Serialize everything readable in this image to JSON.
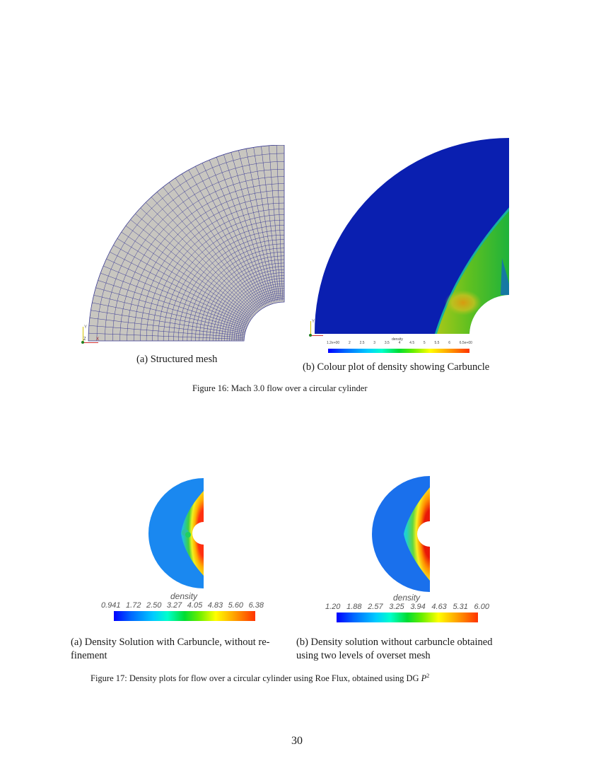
{
  "page": {
    "number": "30"
  },
  "figure16": {
    "caption": "Figure 16: Mach 3.0 flow over a circular cylinder",
    "subfig_a": {
      "caption": "(a) Structured mesh",
      "mesh_color": "#c8c6c0",
      "grid_color": "#2a2a8a"
    },
    "subfig_b": {
      "caption": "(b) Colour plot of density showing Carbuncle",
      "colorbar": {
        "title": "density",
        "ticks": [
          "1.2e+00",
          "2",
          "2.5",
          "3",
          "3.5",
          "4",
          "4.5",
          "5",
          "5.5",
          "6",
          "6.5e+00"
        ]
      }
    },
    "axis_indicator": {
      "y": "Y",
      "z": "Z",
      "x": "X"
    }
  },
  "figure17": {
    "caption_prefix": "Figure 17: Density plots for flow over a circular cylinder using Roe Flux, obtained using DG ",
    "caption_math": "P",
    "caption_sup": "2",
    "subfig_a": {
      "caption_line1": "(a) Density Solution with Carbuncle, without re-",
      "caption_line2": "finement",
      "colorbar": {
        "title": "density",
        "ticks": [
          "0.941",
          "1.72",
          "2.50",
          "3.27",
          "4.05",
          "4.83",
          "5.60",
          "6.38"
        ]
      }
    },
    "subfig_b": {
      "caption_line1": "(b) Density solution without carbuncle obtained",
      "caption_line2": "using two levels of overset mesh",
      "colorbar": {
        "title": "density",
        "ticks": [
          "1.20",
          "1.88",
          "2.57",
          "3.25",
          "3.94",
          "4.63",
          "5.31",
          "6.00"
        ]
      }
    }
  },
  "colors": {
    "freestream_dark": "#0a1fb0",
    "freestream_light": "#1a78f0"
  }
}
